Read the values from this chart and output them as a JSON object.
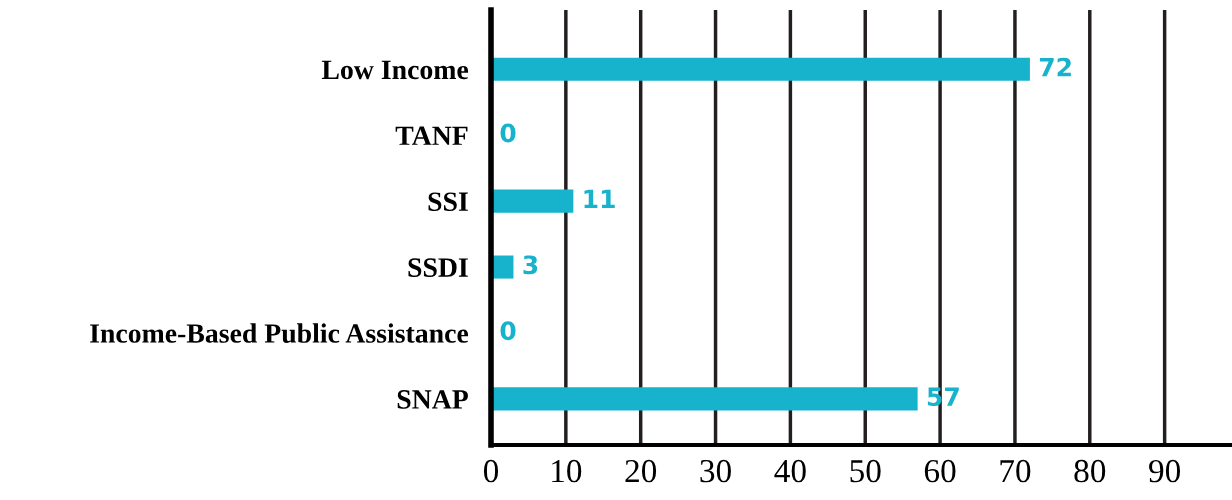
{
  "chart_data": {
    "type": "bar",
    "orientation": "horizontal",
    "categories": [
      "Low Income",
      "TANF",
      "SSI",
      "SSDI",
      "Income-Based Public Assistance",
      "SNAP"
    ],
    "values": [
      72,
      0,
      11,
      3,
      0,
      57
    ],
    "color": "#17b2cc",
    "xlim": [
      0,
      99
    ],
    "xticks": [
      0,
      10,
      20,
      30,
      40,
      50,
      60,
      70,
      80,
      90
    ],
    "grid": "x",
    "data_labels": true
  }
}
